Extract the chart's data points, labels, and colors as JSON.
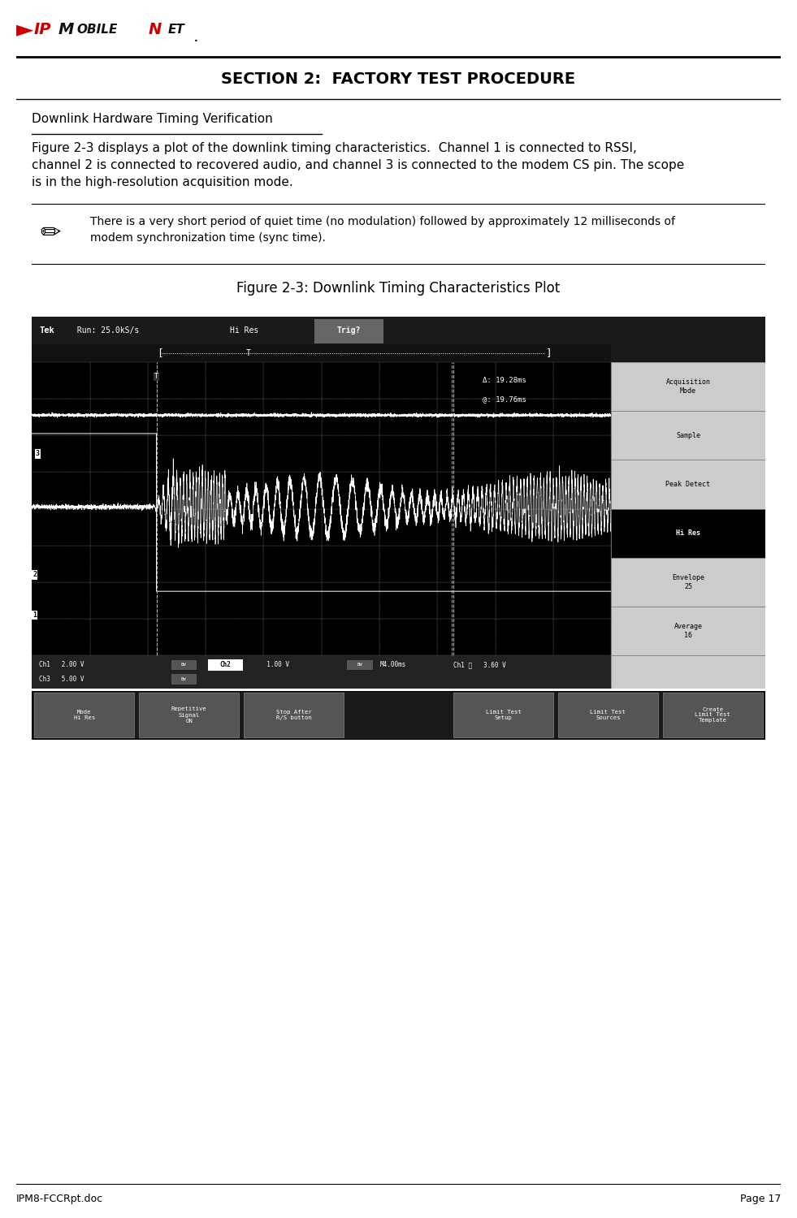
{
  "page_title": "SECTION 2:  FACTORY TEST PROCEDURE",
  "section_heading": "Downlink Hardware Timing Verification",
  "body_text": "Figure 2-3 displays a plot of the downlink timing characteristics.  Channel 1 is connected to RSSI,\nchannel 2 is connected to recovered audio, and channel 3 is connected to the modem CS pin. The scope\nis in the high-resolution acquisition mode.",
  "note_text": "There is a very short period of quiet time (no modulation) followed by approximately 12 milliseconds of\nmodem synchronization time (sync time).",
  "figure_caption": "Figure 2-3: Downlink Timing Characteristics Plot",
  "footer_left": "IPM8-FCCRpt.doc",
  "footer_right": "Page 17",
  "menu_items": [
    "Acquisition\nMode",
    "Sample",
    "Peak Detect",
    "Hi Res",
    "Envelope\n25",
    "Average\n16"
  ],
  "menu_highlight": 3,
  "bottom_menu": [
    "Mode\nHi Res",
    "Repetitive\nSignal\nON",
    "Stop After\nR/S button",
    "",
    "Limit Test\nSetup",
    "Limit Test\nSources",
    "Create\nLimit Test\nTemplate"
  ],
  "bg_color": "#ffffff"
}
